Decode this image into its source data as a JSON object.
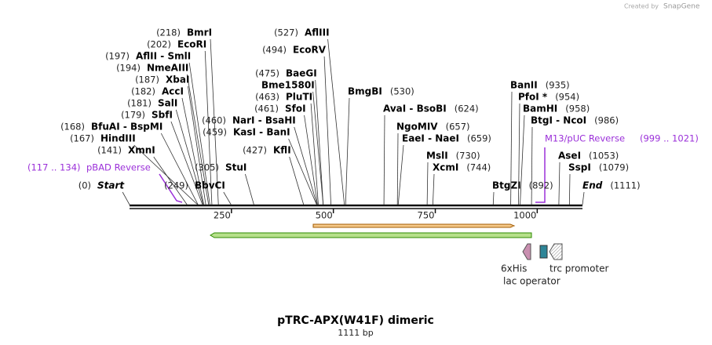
{
  "header": {
    "credit": "Created by",
    "brand": "SnapGene"
  },
  "map": {
    "title": "pTRC-APX(W41F) dimeric",
    "length_label": "1111 bp",
    "length": 1111,
    "ruler_ticks": [
      250,
      500,
      750,
      1000
    ],
    "start": {
      "name": "Start",
      "position": {
        "value": 0,
        "label": "(0)"
      }
    },
    "end": {
      "name": "End",
      "position": {
        "value": 1111,
        "label": "(1111)"
      }
    },
    "sites": [
      {
        "name": "BmrI",
        "position": {
          "value": 218,
          "label": "(218)"
        }
      },
      {
        "name": "EcoRI",
        "position": {
          "value": 202,
          "label": "(202)"
        }
      },
      {
        "name": "AflII  - SmlI",
        "position": {
          "value": 197,
          "label": "(197)"
        }
      },
      {
        "name": "NmeAIII",
        "position": {
          "value": 194,
          "label": "(194)"
        }
      },
      {
        "name": "XbaI",
        "position": {
          "value": 187,
          "label": "(187)"
        }
      },
      {
        "name": "AccI",
        "position": {
          "value": 182,
          "label": "(182)"
        }
      },
      {
        "name": "SalI",
        "position": {
          "value": 181,
          "label": "(181)"
        }
      },
      {
        "name": "SbfI",
        "position": {
          "value": 179,
          "label": "(179)"
        }
      },
      {
        "name": "BfuAI  - BspMI",
        "position": {
          "value": 168,
          "label": "(168)"
        }
      },
      {
        "name": "HindIII",
        "position": {
          "value": 167,
          "label": "(167)"
        }
      },
      {
        "name": "XmnI",
        "position": {
          "value": 141,
          "label": "(141)"
        }
      },
      {
        "name": "BbvCI",
        "position": {
          "value": 249,
          "label": "(249)"
        }
      },
      {
        "name": "StuI",
        "position": {
          "value": 305,
          "label": "(305)"
        }
      },
      {
        "name": "NarI  - BsaHI",
        "position": {
          "value": 460,
          "label": "(460)"
        }
      },
      {
        "name": "KasI  - BanI",
        "position": {
          "value": 459,
          "label": "(459)"
        }
      },
      {
        "name": "KflI",
        "position": {
          "value": 427,
          "label": "(427)"
        }
      },
      {
        "name": "BaeGI",
        "position": {
          "value": 475,
          "label": "(475)"
        }
      },
      {
        "name": "Bme1580I"
      },
      {
        "name": "PluTI",
        "position": {
          "value": 463,
          "label": "(463)"
        }
      },
      {
        "name": "SfoI",
        "position": {
          "value": 461,
          "label": "(461)"
        }
      },
      {
        "name": "AflIII",
        "position": {
          "value": 527,
          "label": "(527)"
        }
      },
      {
        "name": "EcoRV",
        "position": {
          "value": 494,
          "label": "(494)"
        }
      },
      {
        "name": "BmgBI",
        "position": {
          "value": 530,
          "label": "(530)"
        }
      },
      {
        "name": "AvaI  - BsoBI",
        "position": {
          "value": 624,
          "label": "(624)"
        }
      },
      {
        "name": "NgoMIV",
        "position": {
          "value": 657,
          "label": "(657)"
        }
      },
      {
        "name": "EaeI  - NaeI",
        "position": {
          "value": 659,
          "label": "(659)"
        }
      },
      {
        "name": "MslI",
        "position": {
          "value": 730,
          "label": "(730)"
        }
      },
      {
        "name": "XcmI",
        "position": {
          "value": 744,
          "label": "(744)"
        }
      },
      {
        "name": "BtgZI",
        "position": {
          "value": 892,
          "label": "(892)"
        }
      },
      {
        "name": "BanII",
        "position": {
          "value": 935,
          "label": "(935)"
        }
      },
      {
        "name": "PfoI *",
        "position": {
          "value": 954,
          "label": "(954)"
        }
      },
      {
        "name": "BamHI",
        "position": {
          "value": 958,
          "label": "(958)"
        }
      },
      {
        "name": "BtgI  - NcoI",
        "position": {
          "value": 986,
          "label": "(986)"
        }
      },
      {
        "name": "AseI",
        "position": {
          "value": 1053,
          "label": "(1053)"
        }
      },
      {
        "name": "SspI",
        "position": {
          "value": 1079,
          "label": "(1079)"
        }
      }
    ],
    "primers": [
      {
        "name": "pBAD Reverse",
        "range": "(117 .. 134)"
      },
      {
        "name": "M13/pUC Reverse",
        "range": "(999 .. 1021)"
      }
    ],
    "features": [
      {
        "name": "6xHis"
      },
      {
        "name": "trc promoter"
      },
      {
        "name": "lac operator"
      }
    ]
  }
}
